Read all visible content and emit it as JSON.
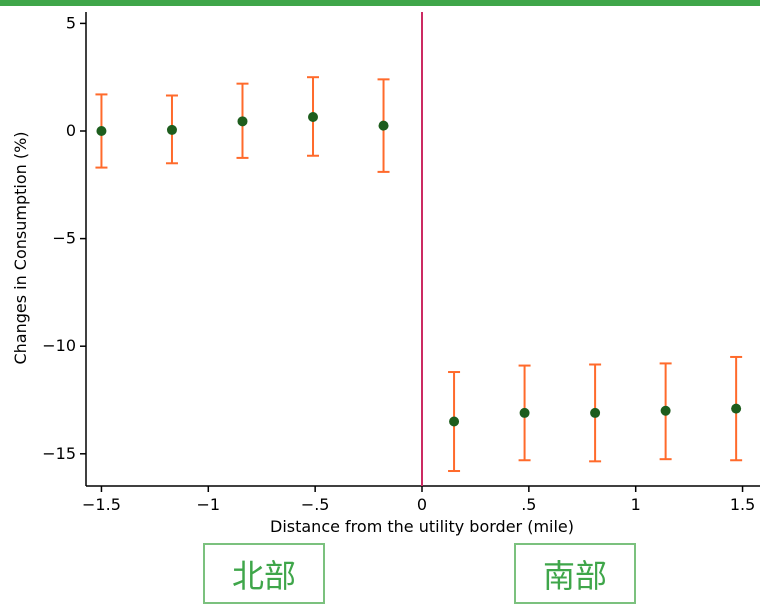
{
  "colors": {
    "top_bar": "#3fa64a",
    "error_bar": "#ff6a2b",
    "point_fill": "#1d5d1d",
    "border_line": "#cc2a62",
    "axis": "#000000",
    "box_border": "#7bc17e",
    "box_text": "#3fa64a"
  },
  "annotations": {
    "north_label": "北部",
    "south_label": "南部"
  },
  "chart_data": {
    "type": "scatter",
    "title": "",
    "xlabel": "Distance from the utility border (mile)",
    "ylabel": "Changes in Consumption (%)",
    "xlim": [
      -1.55,
      1.55
    ],
    "ylim": [
      -16.2,
      5.6
    ],
    "x_ticks": [
      -1.5,
      -1,
      -0.5,
      0,
      0.5,
      1,
      1.5
    ],
    "x_tick_labels": [
      "−1.5",
      "−1",
      "−.5",
      "0",
      ".5",
      "1",
      "1.5"
    ],
    "y_ticks": [
      5,
      0,
      -5,
      -10,
      -15
    ],
    "y_tick_labels": [
      "5",
      "0",
      "−5",
      "−10",
      "−15"
    ],
    "vertical_line_x": 0,
    "points": [
      {
        "x": -1.5,
        "y": 0.0,
        "lo": -1.7,
        "hi": 1.7
      },
      {
        "x": -1.17,
        "y": 0.05,
        "lo": -1.5,
        "hi": 1.65
      },
      {
        "x": -0.84,
        "y": 0.45,
        "lo": -1.25,
        "hi": 2.2
      },
      {
        "x": -0.51,
        "y": 0.65,
        "lo": -1.15,
        "hi": 2.5
      },
      {
        "x": -0.18,
        "y": 0.25,
        "lo": -1.9,
        "hi": 2.4
      },
      {
        "x": 0.15,
        "y": -13.5,
        "lo": -15.8,
        "hi": -11.2
      },
      {
        "x": 0.48,
        "y": -13.1,
        "lo": -15.3,
        "hi": -10.9
      },
      {
        "x": 0.81,
        "y": -13.1,
        "lo": -15.35,
        "hi": -10.85
      },
      {
        "x": 1.14,
        "y": -13.0,
        "lo": -15.25,
        "hi": -10.8
      },
      {
        "x": 1.47,
        "y": -12.9,
        "lo": -15.3,
        "hi": -10.5
      }
    ]
  }
}
